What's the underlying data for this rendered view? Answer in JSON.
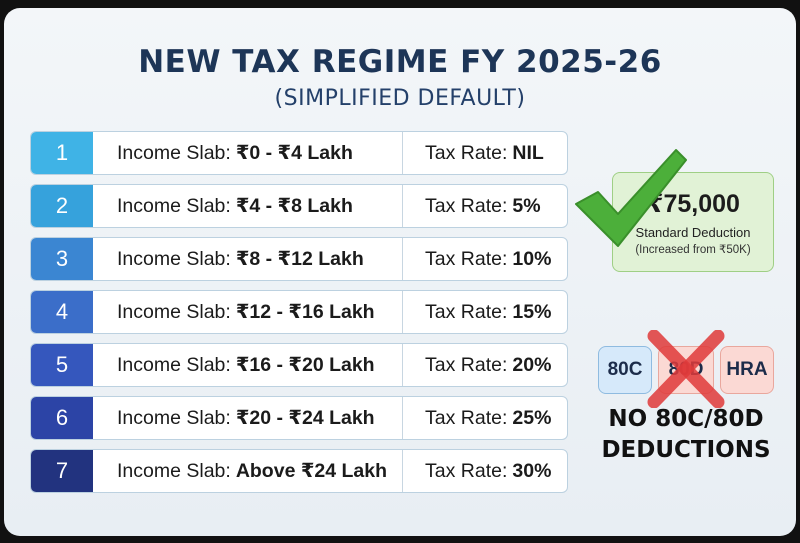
{
  "title": "NEW TAX REGIME FY 2025-26",
  "subtitle": "(SIMPLIFIED DEFAULT)",
  "slabs": [
    {
      "num": "1",
      "income_label": "Income Slab:",
      "income_value": "₹0 - ₹4 Lakh",
      "rate_label": "Tax Rate:",
      "rate_value": "NIL",
      "color": "#3fb3e6"
    },
    {
      "num": "2",
      "income_label": "Income Slab:",
      "income_value": "₹4 - ₹8 Lakh",
      "rate_label": "Tax Rate:",
      "rate_value": "5%",
      "color": "#36a2dc"
    },
    {
      "num": "3",
      "income_label": "Income Slab:",
      "income_value": "₹8 - ₹12 Lakh",
      "rate_label": "Tax Rate:",
      "rate_value": "10%",
      "color": "#3b86d2"
    },
    {
      "num": "4",
      "income_label": "Income Slab:",
      "income_value": "₹12 - ₹16 Lakh",
      "rate_label": "Tax Rate:",
      "rate_value": "15%",
      "color": "#3b6ec9"
    },
    {
      "num": "5",
      "income_label": "Income Slab:",
      "income_value": "₹16 - ₹20 Lakh",
      "rate_label": "Tax Rate:",
      "rate_value": "20%",
      "color": "#3557bd"
    },
    {
      "num": "6",
      "income_label": "Income Slab:",
      "income_value": "₹20 - ₹24 Lakh",
      "rate_label": "Tax Rate:",
      "rate_value": "25%",
      "color": "#2c44a6"
    },
    {
      "num": "7",
      "income_label": "Income Slab:",
      "income_value": "Above ₹24 Lakh",
      "rate_label": "Tax Rate:",
      "rate_value": "30%",
      "color": "#22337f"
    }
  ],
  "standard_deduction": {
    "amount": "₹75,000",
    "label": "Standard Deduction",
    "note": "(Increased from ₹50K)",
    "icon": "checkmark-icon",
    "color": "#4caf3a"
  },
  "removed_deductions": {
    "chips": [
      "80C",
      "80D",
      "HRA"
    ],
    "icon": "cross-icon",
    "color": "#e03a3a",
    "caption_line1": "NO 80C/80D",
    "caption_line2": "DEDUCTIONS"
  }
}
